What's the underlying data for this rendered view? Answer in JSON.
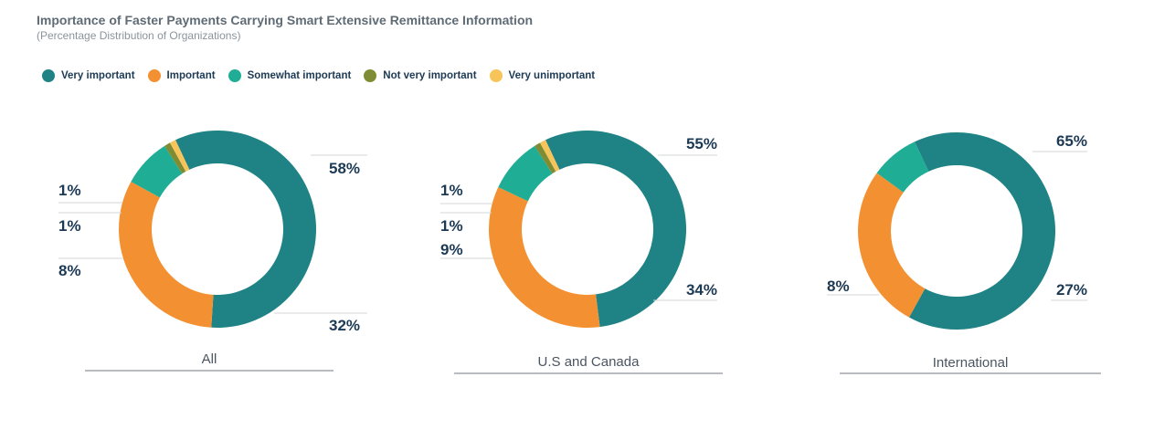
{
  "title": "Importance of Faster Payments Carrying Smart Extensive Remittance Information",
  "subtitle": "(Percentage Distribution of Organizations)",
  "colors": {
    "very_important": "#1f8385",
    "important": "#f39132",
    "somewhat_important": "#1fae95",
    "not_very_important": "#7f8c34",
    "very_unimportant": "#f7c45a"
  },
  "chart_data": [
    {
      "type": "pie",
      "title": "All",
      "categories": [
        "Very important",
        "Important",
        "Somewhat important",
        "Not very important",
        "Very unimportant"
      ],
      "values": [
        58,
        32,
        8,
        1,
        1
      ],
      "value_labels": [
        "58%",
        "32%",
        "8%",
        "1%",
        "1%"
      ],
      "legend": "top-left"
    },
    {
      "type": "pie",
      "title": "U.S and Canada",
      "categories": [
        "Very important",
        "Important",
        "Somewhat important",
        "Not very important",
        "Very unimportant"
      ],
      "values": [
        55,
        34,
        9,
        1,
        1
      ],
      "value_labels": [
        "55%",
        "34%",
        "9%",
        "1%",
        "1%"
      ],
      "legend": "top-left"
    },
    {
      "type": "pie",
      "title": "International",
      "categories": [
        "Very important",
        "Important",
        "Somewhat important"
      ],
      "values": [
        65,
        27,
        8
      ],
      "value_labels": [
        "65%",
        "27%",
        "8%"
      ],
      "legend": "top-left"
    }
  ]
}
